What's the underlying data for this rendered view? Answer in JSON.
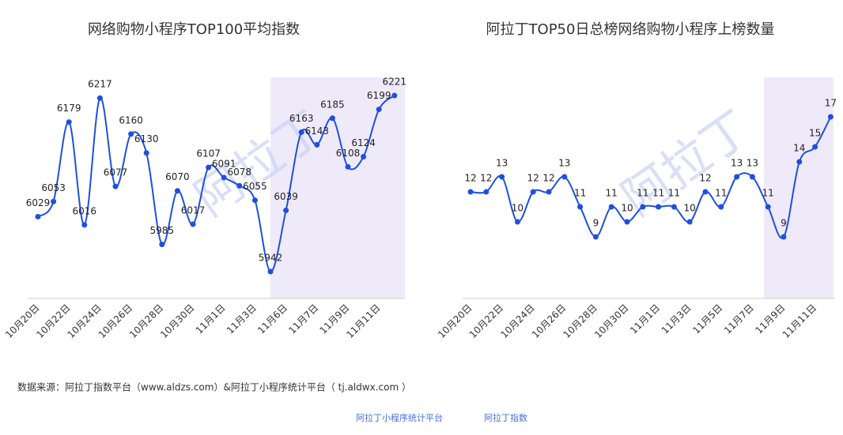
{
  "chart_data": [
    {
      "type": "line",
      "title": "网络购物小程序TOP100平均指数",
      "watermark": "阿拉丁",
      "categories": [
        "10月20日",
        null,
        "10月22日",
        null,
        "10月24日",
        null,
        "10月26日",
        null,
        "10月28日",
        null,
        "10月30日",
        null,
        "11月1日",
        null,
        "11月3日",
        null,
        "11月6日",
        null,
        "11月7日",
        null,
        "11月9日",
        null,
        "11月11日",
        null
      ],
      "series": [
        {
          "name": "平均指数",
          "color": "#1f4fe0",
          "values": [
            6029,
            6053,
            6179,
            6016,
            6217,
            6077,
            6160,
            6130,
            5985,
            6070,
            6017,
            6107,
            6091,
            6078,
            6055,
            5942,
            6039,
            6163,
            6143,
            6185,
            6108,
            6124,
            6199,
            6221
          ]
        }
      ]
    },
    {
      "type": "line",
      "title": "阿拉丁TOP50日总榜网络购物小程序上榜数量",
      "watermark": "阿拉丁",
      "categories": [
        "10月20日",
        null,
        "10月22日",
        null,
        "10月24日",
        null,
        "10月26日",
        null,
        "10月28日",
        null,
        "10月30日",
        null,
        "11月1日",
        null,
        "11月3日",
        null,
        "11月5日",
        null,
        "11月7日",
        null,
        "11月9日",
        null,
        "11月11日",
        null
      ],
      "series": [
        {
          "name": "上榜数量",
          "color": "#1f4fe0",
          "values": [
            12,
            12,
            13,
            10,
            12,
            12,
            13,
            11,
            9,
            11,
            10,
            11,
            11,
            11,
            10,
            12,
            11,
            13,
            13,
            11,
            9,
            14,
            15,
            17
          ]
        }
      ]
    }
  ],
  "source": "数据来源：阿拉丁指数平台（www.aldzs.com）&阿拉丁小程序统计平台（ tj.aldwx.com ）",
  "logos": [
    "阿拉丁小程序统计平台",
    "阿拉丁指数"
  ]
}
